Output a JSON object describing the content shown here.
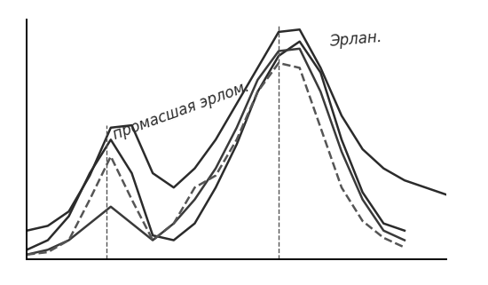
{
  "chart_data": {
    "type": "line",
    "x": [
      0,
      0.5,
      1,
      1.5,
      2,
      2.5,
      3,
      3.5,
      4,
      4.5,
      5,
      5.5,
      6,
      6.5,
      7,
      7.5,
      8,
      8.5,
      9,
      9.5,
      10
    ],
    "series": [
      {
        "color": "#2b2b2b",
        "line_style": "solid",
        "values": [
          1.2,
          1.4,
          2.0,
          3.5,
          5.5,
          5.6,
          3.6,
          3.0,
          3.8,
          5.0,
          6.5,
          8.0,
          9.5,
          9.6,
          8.0,
          6.0,
          4.6,
          3.8,
          3.3,
          3.0,
          2.7
        ]
      },
      {
        "color": "#2b2b2b",
        "line_style": "solid",
        "values": [
          0.4,
          0.8,
          1.8,
          3.6,
          5.0,
          3.6,
          1.0,
          0.8,
          1.5,
          3.0,
          4.8,
          7.0,
          8.5,
          9.1,
          7.8,
          5.0,
          2.8,
          1.5,
          1.2,
          null,
          null
        ]
      },
      {
        "color": "#3a3a3a",
        "line_style": "solid",
        "values": [
          0.2,
          0.4,
          0.8,
          1.5,
          2.2,
          1.5,
          0.8,
          1.5,
          2.5,
          3.8,
          5.5,
          7.5,
          8.7,
          8.8,
          7.0,
          4.5,
          2.5,
          1.2,
          0.8,
          null,
          null
        ]
      },
      {
        "color": "#555555",
        "line_style": "dashed",
        "values": [
          0.2,
          0.3,
          0.8,
          2.5,
          4.3,
          2.5,
          0.8,
          1.5,
          3.0,
          3.5,
          5.0,
          7.0,
          8.2,
          8.0,
          5.5,
          3.0,
          1.6,
          0.9,
          0.5,
          null,
          null
        ]
      }
    ],
    "vlines": [
      {
        "x": 1.9,
        "top": 5.6
      },
      {
        "x": 6.0,
        "top": 9.8
      }
    ],
    "annotations": [
      "промасшая эрлом.",
      "Эрлан."
    ],
    "xlim": [
      0,
      10
    ],
    "ylim": [
      0,
      10
    ],
    "xticks": [],
    "yticks": [],
    "tick_labels": false
  }
}
